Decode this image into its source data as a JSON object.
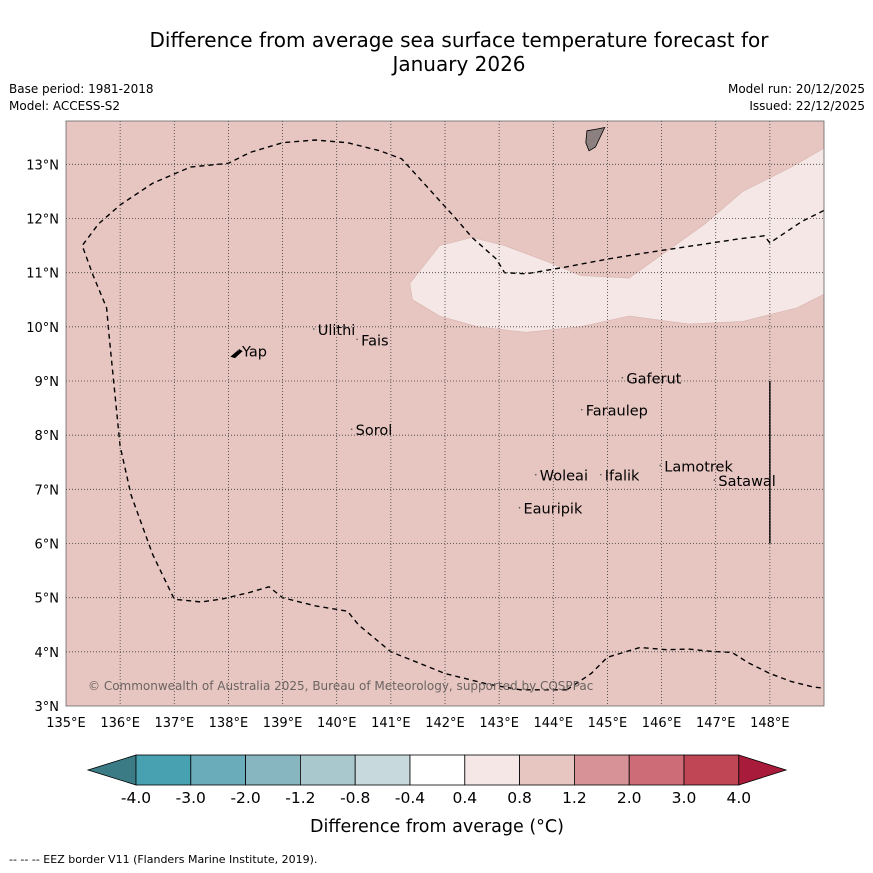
{
  "header": {
    "title_line1": "Difference from average sea surface temperature forecast for",
    "title_line2": "January 2026",
    "base_period": "Base period: 1981-2018",
    "model": "Model: ACCESS-S2",
    "model_run": "Model run: 20/12/2025",
    "issued": "Issued: 22/12/2025"
  },
  "map": {
    "lon_range": [
      135,
      149
    ],
    "lat_range": [
      3,
      13.8
    ],
    "lon_ticks": [
      "135°E",
      "136°E",
      "137°E",
      "138°E",
      "139°E",
      "140°E",
      "141°E",
      "142°E",
      "143°E",
      "144°E",
      "145°E",
      "146°E",
      "147°E",
      "148°E"
    ],
    "lat_ticks": [
      "3°N",
      "4°N",
      "5°N",
      "6°N",
      "7°N",
      "8°N",
      "9°N",
      "10°N",
      "11°N",
      "12°N",
      "13°N"
    ],
    "background_color": "#e7c6c1",
    "warm_band_color": "#f4e7e5",
    "places": [
      {
        "name": "Yap",
        "lon": 138.25,
        "lat": 9.45
      },
      {
        "name": "Ulithi",
        "lon": 139.65,
        "lat": 9.85
      },
      {
        "name": "Fais",
        "lon": 140.45,
        "lat": 9.66
      },
      {
        "name": "Sorol",
        "lon": 140.35,
        "lat": 8.0
      },
      {
        "name": "Gaferut",
        "lon": 145.35,
        "lat": 8.95
      },
      {
        "name": "Faraulep",
        "lon": 144.6,
        "lat": 8.36
      },
      {
        "name": "Woleai",
        "lon": 143.75,
        "lat": 7.16
      },
      {
        "name": "Ifalik",
        "lon": 144.95,
        "lat": 7.16
      },
      {
        "name": "Lamotrek",
        "lon": 146.05,
        "lat": 7.33
      },
      {
        "name": "Satawal",
        "lon": 147.05,
        "lat": 7.06
      },
      {
        "name": "Eauripik",
        "lon": 143.45,
        "lat": 6.55
      }
    ],
    "copyright": "© Commonwealth of Australia 2025, Bureau of Meteorology, supported by COSPPac"
  },
  "colorbar": {
    "labels": [
      "-4.0",
      "-3.0",
      "-2.0",
      "-1.2",
      "-0.8",
      "-0.4",
      "0.4",
      "0.8",
      "1.2",
      "2.0",
      "3.0",
      "4.0"
    ],
    "colors": [
      "#3a7b86",
      "#48a1b1",
      "#6aacba",
      "#87b6c1",
      "#a9c8ce",
      "#c7d9dc",
      "#ffffff",
      "#f4e7e5",
      "#e7c6c1",
      "#d79297",
      "#cd6c76",
      "#c04656",
      "#a91b3b"
    ],
    "label": "Difference from average (°C)"
  },
  "footer": {
    "legend_text": "--  --  -- EEZ border V11 (Flanders Marine Institute, 2019)."
  }
}
